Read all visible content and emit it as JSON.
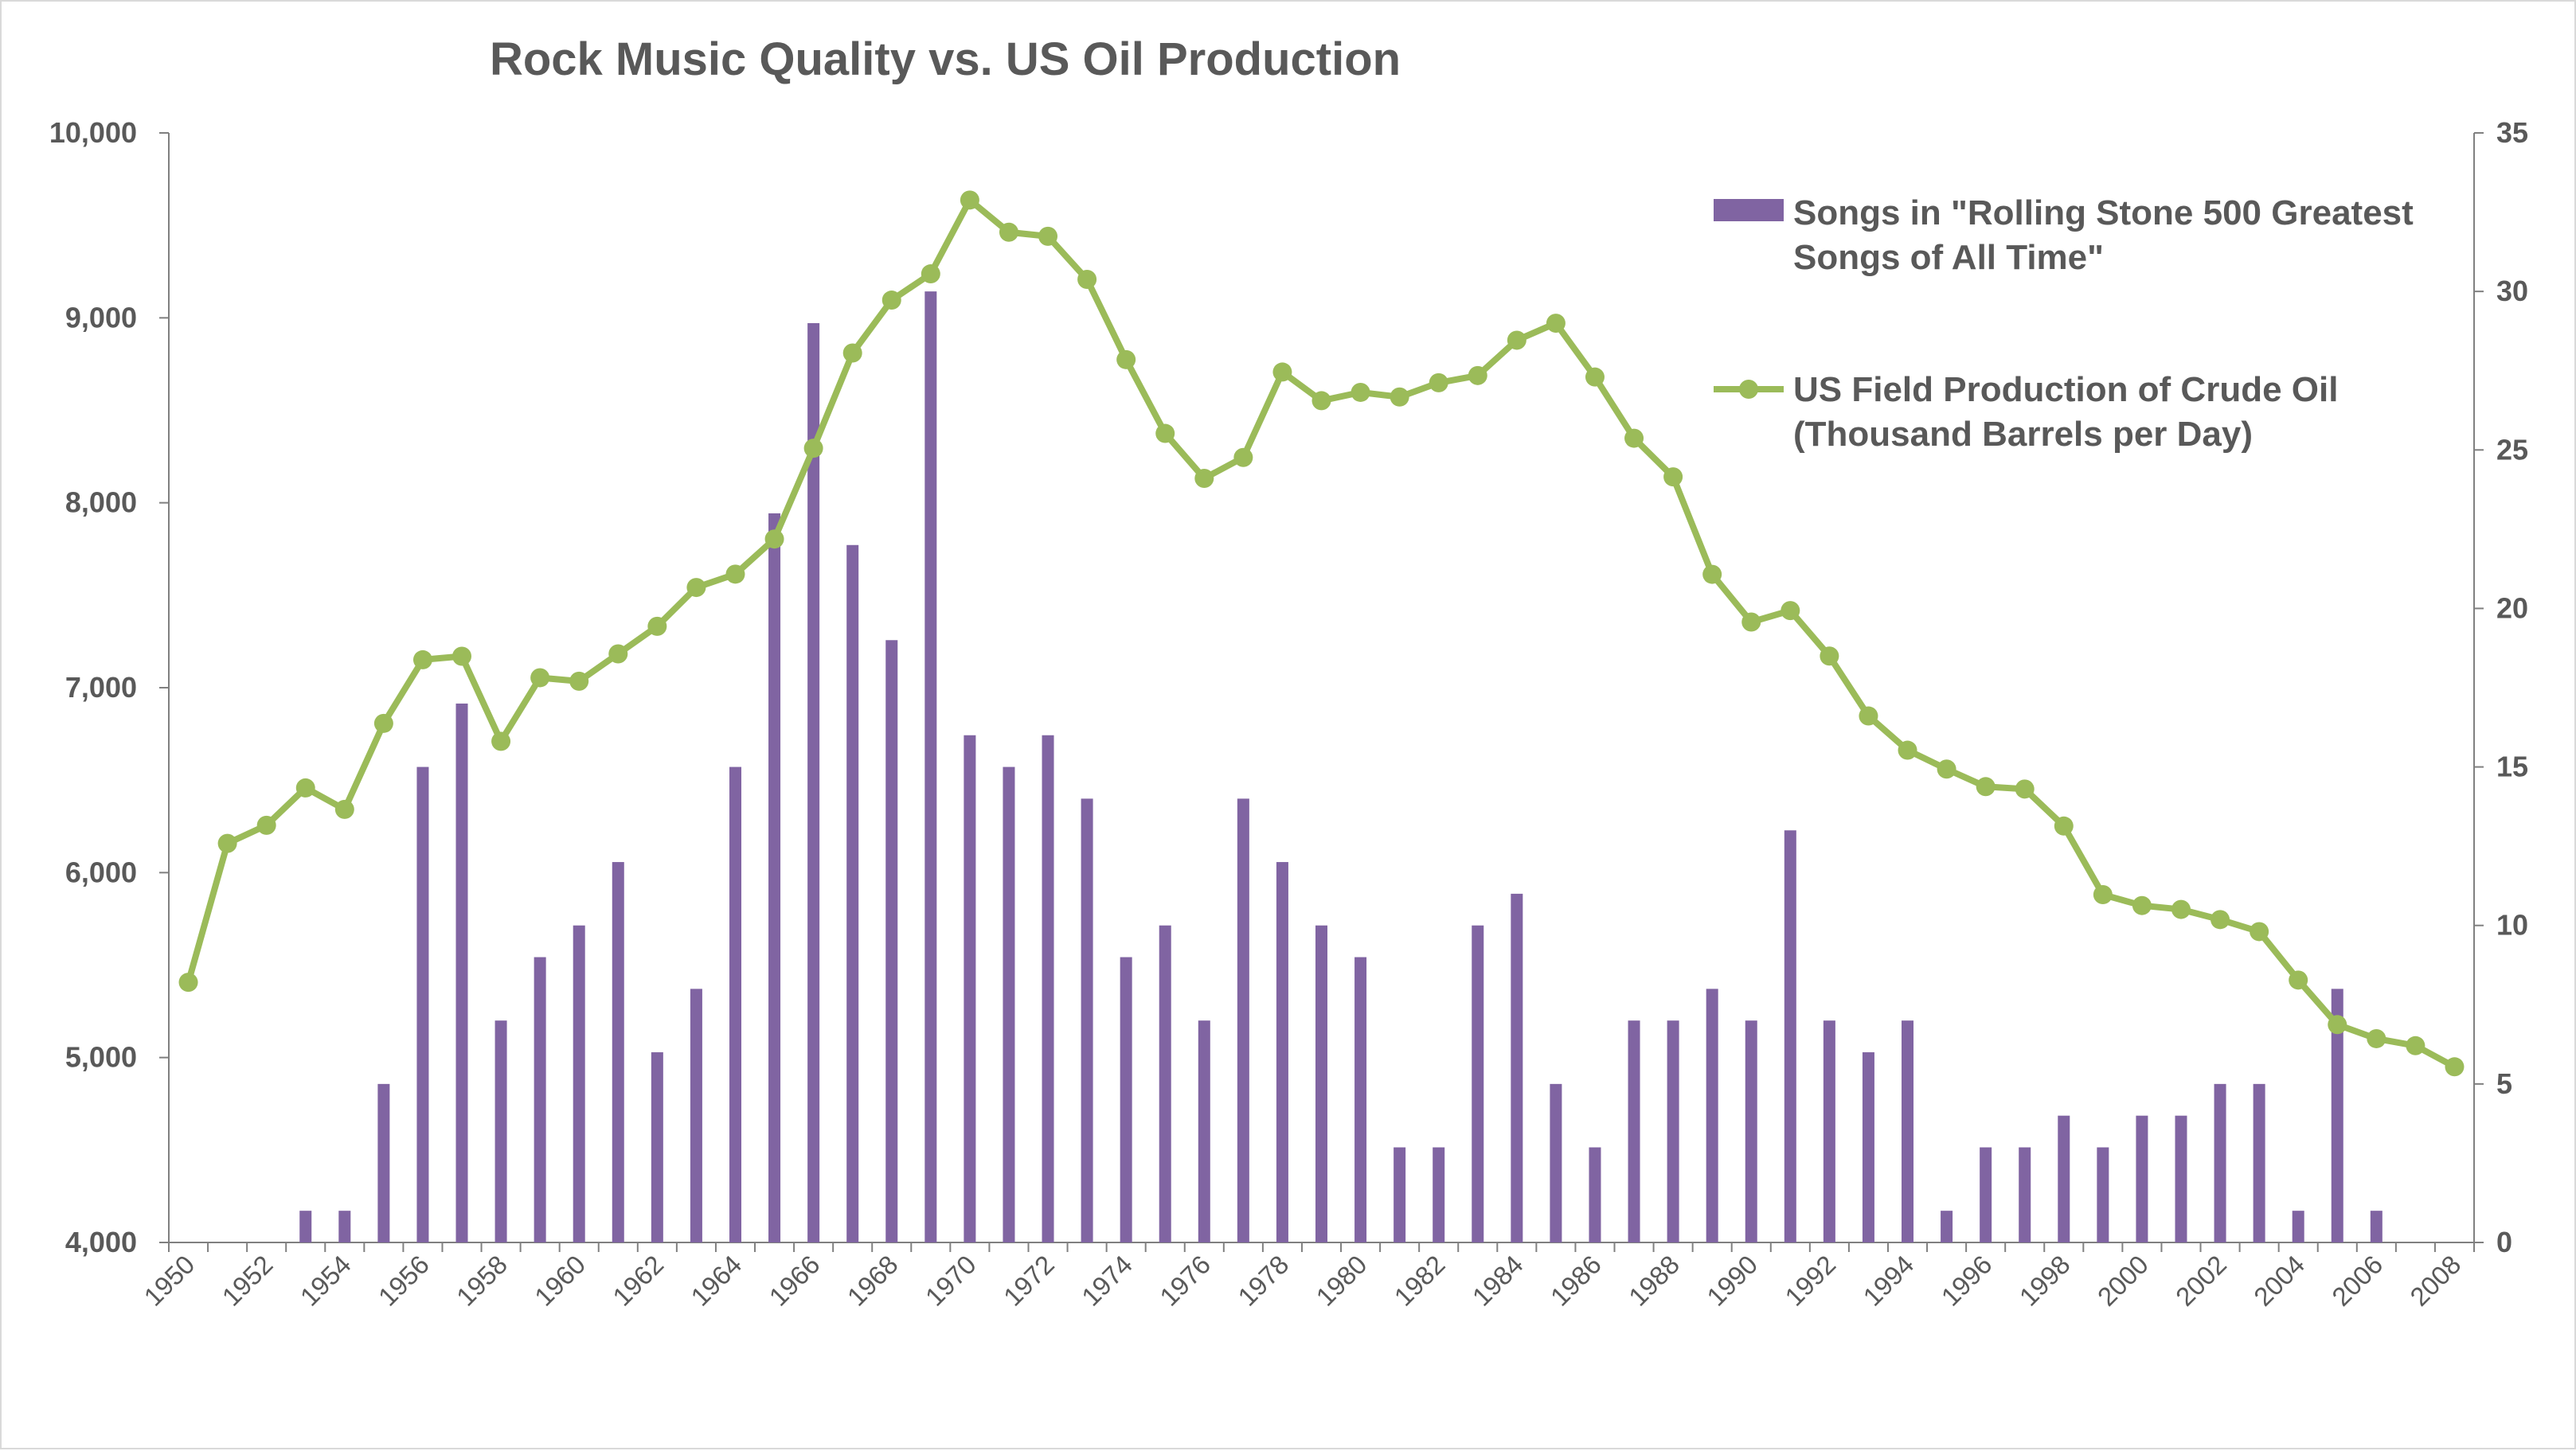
{
  "chart_data": {
    "type": "bar+line",
    "title": "Rock Music Quality vs. US Oil Production",
    "colors": {
      "bars": "#8064a2",
      "line": "#9bbb59"
    },
    "x": [
      1950,
      1951,
      1952,
      1953,
      1954,
      1955,
      1956,
      1957,
      1958,
      1959,
      1960,
      1961,
      1962,
      1963,
      1964,
      1965,
      1966,
      1967,
      1968,
      1969,
      1970,
      1971,
      1972,
      1973,
      1974,
      1975,
      1976,
      1977,
      1978,
      1979,
      1980,
      1981,
      1982,
      1983,
      1984,
      1985,
      1986,
      1987,
      1988,
      1989,
      1990,
      1991,
      1992,
      1993,
      1994,
      1995,
      1996,
      1997,
      1998,
      1999,
      2000,
      2001,
      2002,
      2003,
      2004,
      2005,
      2006,
      2007,
      2008
    ],
    "x_tick_labels": [
      "1950",
      "1952",
      "1954",
      "1956",
      "1958",
      "1960",
      "1962",
      "1964",
      "1966",
      "1968",
      "1970",
      "1972",
      "1974",
      "1976",
      "1978",
      "1980",
      "1982",
      "1984",
      "1986",
      "1988",
      "1990",
      "1992",
      "1994",
      "1996",
      "1998",
      "2000",
      "2002",
      "2004",
      "2006",
      "2008"
    ],
    "y_left": {
      "min": 4000,
      "max": 10000,
      "tick_labels": [
        "4,000",
        "5,000",
        "6,000",
        "7,000",
        "8,000",
        "9,000",
        "10,000"
      ]
    },
    "y_right": {
      "min": 0,
      "max": 35,
      "tick_labels": [
        "0",
        "5",
        "10",
        "15",
        "20",
        "25",
        "30",
        "35"
      ]
    },
    "series": [
      {
        "name": "Songs in \"Rolling Stone 500 Greatest Songs of All Time\"",
        "type": "bar",
        "axis": "right",
        "values": [
          0,
          0,
          0,
          1,
          1,
          5,
          15,
          17,
          7,
          9,
          10,
          12,
          6,
          8,
          15,
          23,
          29,
          22,
          19,
          30,
          16,
          15,
          16,
          14,
          9,
          10,
          7,
          14,
          12,
          10,
          9,
          3,
          3,
          10,
          11,
          5,
          3,
          7,
          7,
          8,
          7,
          13,
          7,
          6,
          7,
          1,
          3,
          3,
          4,
          3,
          4,
          4,
          5,
          5,
          1,
          8,
          1,
          0,
          0
        ]
      },
      {
        "name": "US Field Production of Crude Oil (Thousand Barrels per Day)",
        "type": "line",
        "axis": "left",
        "values": [
          5407,
          6158,
          6256,
          6458,
          6342,
          6807,
          7151,
          7170,
          6710,
          7054,
          7035,
          7183,
          7332,
          7542,
          7614,
          7804,
          8295,
          8810,
          9096,
          9238,
          9637,
          9463,
          9441,
          9208,
          8774,
          8375,
          8132,
          8245,
          8707,
          8552,
          8597,
          8572,
          8649,
          8688,
          8879,
          8971,
          8680,
          8349,
          8140,
          7613,
          7355,
          7417,
          7171,
          6847,
          6662,
          6560,
          6465,
          6452,
          6252,
          5881,
          5822,
          5801,
          5746,
          5681,
          5419,
          5178,
          5102,
          5064,
          4950
        ]
      }
    ],
    "legend": {
      "bar_label_lines": [
        "Songs in \"Rolling Stone 500 Greatest",
        "Songs of All Time\""
      ],
      "line_label_lines": [
        "US Field Production of Crude Oil",
        "(Thousand Barrels per Day)"
      ]
    }
  }
}
